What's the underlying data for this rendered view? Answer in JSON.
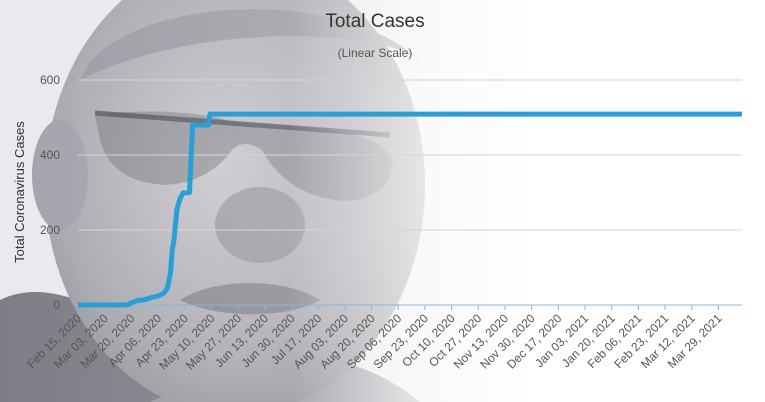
{
  "chart_data": {
    "type": "line",
    "title": "Total Cases",
    "subtitle": "(Linear Scale)",
    "ylabel": "Total Coronavirus Cases",
    "xlabel": "",
    "ylim": [
      0,
      600
    ],
    "yticks": [
      0,
      200,
      400,
      600
    ],
    "grid": true,
    "legend": "none",
    "x_tick_labels": [
      "Feb 15, 2020",
      "Mar 03, 2020",
      "Mar 20, 2020",
      "Apr 06, 2020",
      "Apr 23, 2020",
      "May 10, 2020",
      "May 27, 2020",
      "Jun 13, 2020",
      "Jun 30, 2020",
      "Jul 17, 2020",
      "Aug 03, 2020",
      "Aug 20, 2020",
      "Sep 06, 2020",
      "Sep 23, 2020",
      "Oct 10, 2020",
      "Oct 27, 2020",
      "Nov 13, 2020",
      "Nov 30, 2020",
      "Dec 17, 2020",
      "Jan 03, 2021",
      "Jan 20, 2021",
      "Feb 06, 2021",
      "Feb 23, 2021",
      "Mar 12, 2021",
      "Mar 29, 2021"
    ],
    "x_start": "2020-02-15",
    "x_end": "2021-04-13",
    "series": [
      {
        "color": "#2a9fd6",
        "points": [
          [
            "2020-02-15",
            0
          ],
          [
            "2020-03-15",
            0
          ],
          [
            "2020-03-18",
            1
          ],
          [
            "2020-03-20",
            6
          ],
          [
            "2020-03-24",
            12
          ],
          [
            "2020-03-28",
            14
          ],
          [
            "2020-04-02",
            20
          ],
          [
            "2020-04-06",
            24
          ],
          [
            "2020-04-10",
            32
          ],
          [
            "2020-04-12",
            46
          ],
          [
            "2020-04-14",
            88
          ],
          [
            "2020-04-15",
            147
          ],
          [
            "2020-04-16",
            170
          ],
          [
            "2020-04-18",
            254
          ],
          [
            "2020-04-20",
            284
          ],
          [
            "2020-04-22",
            299
          ],
          [
            "2020-04-24",
            299
          ],
          [
            "2020-04-26",
            300
          ],
          [
            "2020-04-28",
            480
          ],
          [
            "2020-05-02",
            480
          ],
          [
            "2020-05-03",
            480
          ],
          [
            "2020-05-08",
            480
          ],
          [
            "2020-05-09",
            509
          ],
          [
            "2021-04-13",
            509
          ]
        ]
      }
    ],
    "background_photo": "photo of a man wearing glasses, faded behind the plot"
  }
}
